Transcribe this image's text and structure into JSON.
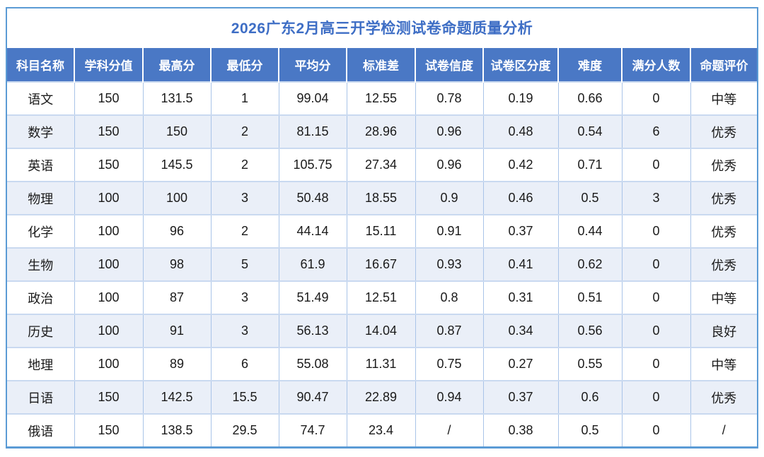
{
  "title": "2026广东2月高三开学检测试卷命题质量分析",
  "colors": {
    "title_text": "#3E6EC5",
    "header_bg": "#4A78C5",
    "header_text": "#FFFFFF",
    "row_bg": "#FFFFFF",
    "row_alt_bg": "#EAEFF8",
    "body_border_horizontal": "#C9D9F0",
    "body_border_vertical": "#A9C4E8",
    "outer_border": "#5B9BD5",
    "body_text": "#1A1A1A"
  },
  "table": {
    "columns": [
      "科目名称",
      "学科分值",
      "最高分",
      "最低分",
      "平均分",
      "标准差",
      "试卷信度",
      "试卷区分度",
      "难度",
      "满分人数",
      "命题评价"
    ],
    "rows": [
      [
        "语文",
        "150",
        "131.5",
        "1",
        "99.04",
        "12.55",
        "0.78",
        "0.19",
        "0.66",
        "0",
        "中等"
      ],
      [
        "数学",
        "150",
        "150",
        "2",
        "81.15",
        "28.96",
        "0.96",
        "0.48",
        "0.54",
        "6",
        "优秀"
      ],
      [
        "英语",
        "150",
        "145.5",
        "2",
        "105.75",
        "27.34",
        "0.96",
        "0.42",
        "0.71",
        "0",
        "优秀"
      ],
      [
        "物理",
        "100",
        "100",
        "3",
        "50.48",
        "18.55",
        "0.9",
        "0.46",
        "0.5",
        "3",
        "优秀"
      ],
      [
        "化学",
        "100",
        "96",
        "2",
        "44.14",
        "15.11",
        "0.91",
        "0.37",
        "0.44",
        "0",
        "优秀"
      ],
      [
        "生物",
        "100",
        "98",
        "5",
        "61.9",
        "16.67",
        "0.93",
        "0.41",
        "0.62",
        "0",
        "优秀"
      ],
      [
        "政治",
        "100",
        "87",
        "3",
        "51.49",
        "12.51",
        "0.8",
        "0.31",
        "0.51",
        "0",
        "中等"
      ],
      [
        "历史",
        "100",
        "91",
        "3",
        "56.13",
        "14.04",
        "0.87",
        "0.34",
        "0.56",
        "0",
        "良好"
      ],
      [
        "地理",
        "100",
        "89",
        "6",
        "55.08",
        "11.31",
        "0.75",
        "0.27",
        "0.55",
        "0",
        "中等"
      ],
      [
        "日语",
        "150",
        "142.5",
        "15.5",
        "90.47",
        "22.89",
        "0.94",
        "0.37",
        "0.6",
        "0",
        "优秀"
      ],
      [
        "俄语",
        "150",
        "138.5",
        "29.5",
        "74.7",
        "23.4",
        "/",
        "0.38",
        "0.5",
        "0",
        "/"
      ]
    ]
  },
  "chart_data": {
    "type": "table",
    "title": "2026广东2月高三开学检测试卷命题质量分析",
    "columns": [
      "科目名称",
      "学科分值",
      "最高分",
      "最低分",
      "平均分",
      "标准差",
      "试卷信度",
      "试卷区分度",
      "难度",
      "满分人数",
      "命题评价"
    ],
    "rows": [
      [
        "语文",
        150,
        131.5,
        1,
        99.04,
        12.55,
        0.78,
        0.19,
        0.66,
        0,
        "中等"
      ],
      [
        "数学",
        150,
        150,
        2,
        81.15,
        28.96,
        0.96,
        0.48,
        0.54,
        6,
        "优秀"
      ],
      [
        "英语",
        150,
        145.5,
        2,
        105.75,
        27.34,
        0.96,
        0.42,
        0.71,
        0,
        "优秀"
      ],
      [
        "物理",
        100,
        100,
        3,
        50.48,
        18.55,
        0.9,
        0.46,
        0.5,
        3,
        "优秀"
      ],
      [
        "化学",
        100,
        96,
        2,
        44.14,
        15.11,
        0.91,
        0.37,
        0.44,
        0,
        "优秀"
      ],
      [
        "生物",
        100,
        98,
        5,
        61.9,
        16.67,
        0.93,
        0.41,
        0.62,
        0,
        "优秀"
      ],
      [
        "政治",
        100,
        87,
        3,
        51.49,
        12.51,
        0.8,
        0.31,
        0.51,
        0,
        "中等"
      ],
      [
        "历史",
        100,
        91,
        3,
        56.13,
        14.04,
        0.87,
        0.34,
        0.56,
        0,
        "良好"
      ],
      [
        "地理",
        100,
        89,
        6,
        55.08,
        11.31,
        0.75,
        0.27,
        0.55,
        0,
        "中等"
      ],
      [
        "日语",
        150,
        142.5,
        15.5,
        90.47,
        22.89,
        0.94,
        0.37,
        0.6,
        0,
        "优秀"
      ],
      [
        "俄语",
        150,
        138.5,
        29.5,
        74.7,
        23.4,
        "/",
        0.38,
        0.5,
        0,
        "/"
      ]
    ]
  }
}
